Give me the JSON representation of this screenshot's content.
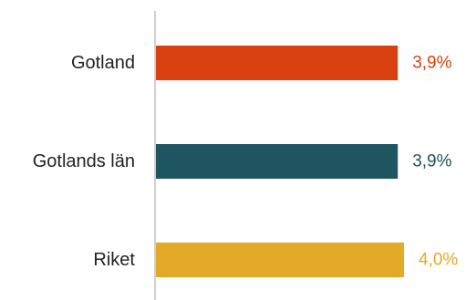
{
  "chart_data": {
    "type": "bar",
    "orientation": "horizontal",
    "categories": [
      "Gotland",
      "Gotlands län",
      "Riket"
    ],
    "values": [
      3.9,
      3.9,
      4.0
    ],
    "value_labels": [
      "3,9%",
      "3,9%",
      "4,0%"
    ],
    "colors": [
      "#d9400f",
      "#1e5560",
      "#e5a928"
    ],
    "axis_color": "#d0d0d0",
    "xlim": [
      0,
      4.0
    ],
    "grid": false,
    "legend": "none"
  }
}
